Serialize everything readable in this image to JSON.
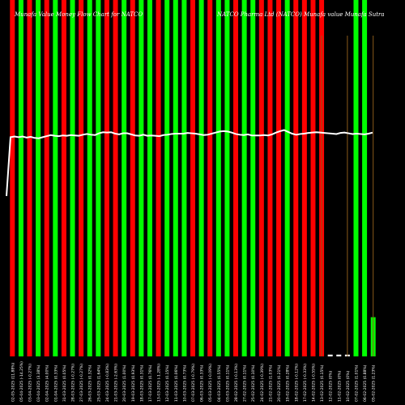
{
  "chart_data": {
    "type": "bar",
    "title_left": "Munafa Value Money Flow Chart for NATCO",
    "title_right": "NATCO Pharma Ltd (NATCO) Munafa value Munafa Sutra",
    "bar_values": [
      1,
      1,
      1,
      1,
      1,
      1,
      1,
      1,
      1,
      1,
      1,
      1,
      1,
      1,
      1,
      1,
      1,
      1,
      1,
      1,
      1,
      1,
      1,
      1,
      1,
      1,
      1,
      1,
      1,
      1,
      1,
      1,
      1,
      1,
      1,
      1,
      1,
      0.005,
      0.005,
      0.005,
      1,
      1,
      0.11
    ],
    "bar_colors": [
      "#ff0000",
      "#00ff00",
      "#ff0000",
      "#00ff00",
      "#ff0000",
      "#00ff00",
      "#ff0000",
      "#00ff00",
      "#ff0000",
      "#00ff00",
      "#00ff00",
      "#ff0000",
      "#ff0000",
      "#00ff00",
      "#ff0000",
      "#00ff00",
      "#00ff00",
      "#ff0000",
      "#00ff00",
      "#00ff00",
      "#00ff00",
      "#ff0000",
      "#00ff00",
      "#ff0000",
      "#00ff00",
      "#00ff00",
      "#ff0000",
      "#00ff00",
      "#00ff00",
      "#ff0000",
      "#ff0000",
      "#ff0000",
      "#00ff00",
      "#ff0000",
      "#ff0000",
      "#ff0000",
      "#ff0000",
      "#ffffff",
      "#ffffff",
      "#ffffff",
      "#00ff00",
      "#00ff00",
      "#00ff00"
    ],
    "thin_lines": [
      {
        "bar_index": 36,
        "top": 0.9
      },
      {
        "bar_index": 39,
        "top": 0.9
      },
      {
        "bar_index": 42,
        "top": 0.9
      }
    ],
    "line_values": [
      0.45,
      0.615,
      0.617,
      0.615,
      0.617,
      0.614,
      0.616,
      0.613,
      0.612,
      0.615,
      0.618,
      0.621,
      0.619,
      0.618,
      0.62,
      0.619,
      0.621,
      0.62,
      0.619,
      0.622,
      0.624,
      0.622,
      0.621,
      0.626,
      0.629,
      0.628,
      0.629,
      0.625,
      0.623,
      0.626,
      0.626,
      0.623,
      0.62,
      0.619,
      0.622,
      0.619,
      0.62,
      0.619,
      0.618,
      0.621,
      0.622,
      0.624,
      0.625,
      0.625,
      0.625,
      0.627,
      0.626,
      0.625,
      0.623,
      0.621,
      0.622,
      0.625,
      0.628,
      0.631,
      0.632,
      0.631,
      0.628,
      0.624,
      0.622,
      0.621,
      0.623,
      0.62,
      0.62,
      0.62,
      0.621,
      0.62,
      0.623,
      0.628,
      0.632,
      0.635,
      0.63,
      0.625,
      0.622,
      0.624,
      0.625,
      0.627,
      0.628,
      0.629,
      0.628,
      0.627,
      0.626,
      0.625,
      0.624,
      0.627,
      0.628,
      0.626,
      0.624,
      0.625,
      0.624,
      0.623,
      0.625,
      0.628
    ],
    "x_labels": [
      "02-05-2025 (11.88%)",
      "05-04-2025 (-14.25%)",
      "03-04-2025 (-0.27%)",
      "03-04-2025 (3.38%)",
      "02-04-2025 (4.00%)",
      "01-04-2025 (0.33%)",
      "31-03-2025 (0.05%)",
      "28-03-2025 (-0.27%)",
      "27-03-2025 (-0.27%)",
      "26-03-2025 (0.32%)",
      "25-03-2025 (1.64%)",
      "24-03-2025 (-0.83%)",
      "21-03-2025 (-2.63%)",
      "20-03-2025 (1.00%)",
      "19-03-2025 (0.93%)",
      "18-03-2025 (0.31%)",
      "17-03-2025 (0.76%)",
      "13-03-2025 (-1.28%)",
      "12-03-2025 (0.15%)",
      "11-03-2025 (0.06%)",
      "10-03-2025 (0.73%)",
      "07-03-2025 (-0.79%)",
      "06-03-2025 (0.33%)",
      "05-03-2025 (-0.09%)",
      "04-03-2025 (0.55%)",
      "03-03-2025 (0.11%)",
      "28-02-2025 (-0.13%)",
      "27-02-2025 (0.11%)",
      "25-02-2025 (0.10%)",
      "24-02-2025 (-0.39%)",
      "21-02-2025 (1.03%)",
      "20-02-2025 (0.21%)",
      "19-02-2025 (0.28%)",
      "18-02-2025 (-0.12%)",
      "17-02-2025 (-0.33%)",
      "14-02-2025 (-0.55%)",
      "13-02-2025 (0.15%)",
      "12-02-2025 (0%)",
      "11-02-2025 (0%)",
      "10-02-2025 (0%)",
      "07-02-2025 (1.01%)",
      "06-02-2025 (0.88%)",
      "05-02-2025 (1.23%)"
    ]
  }
}
